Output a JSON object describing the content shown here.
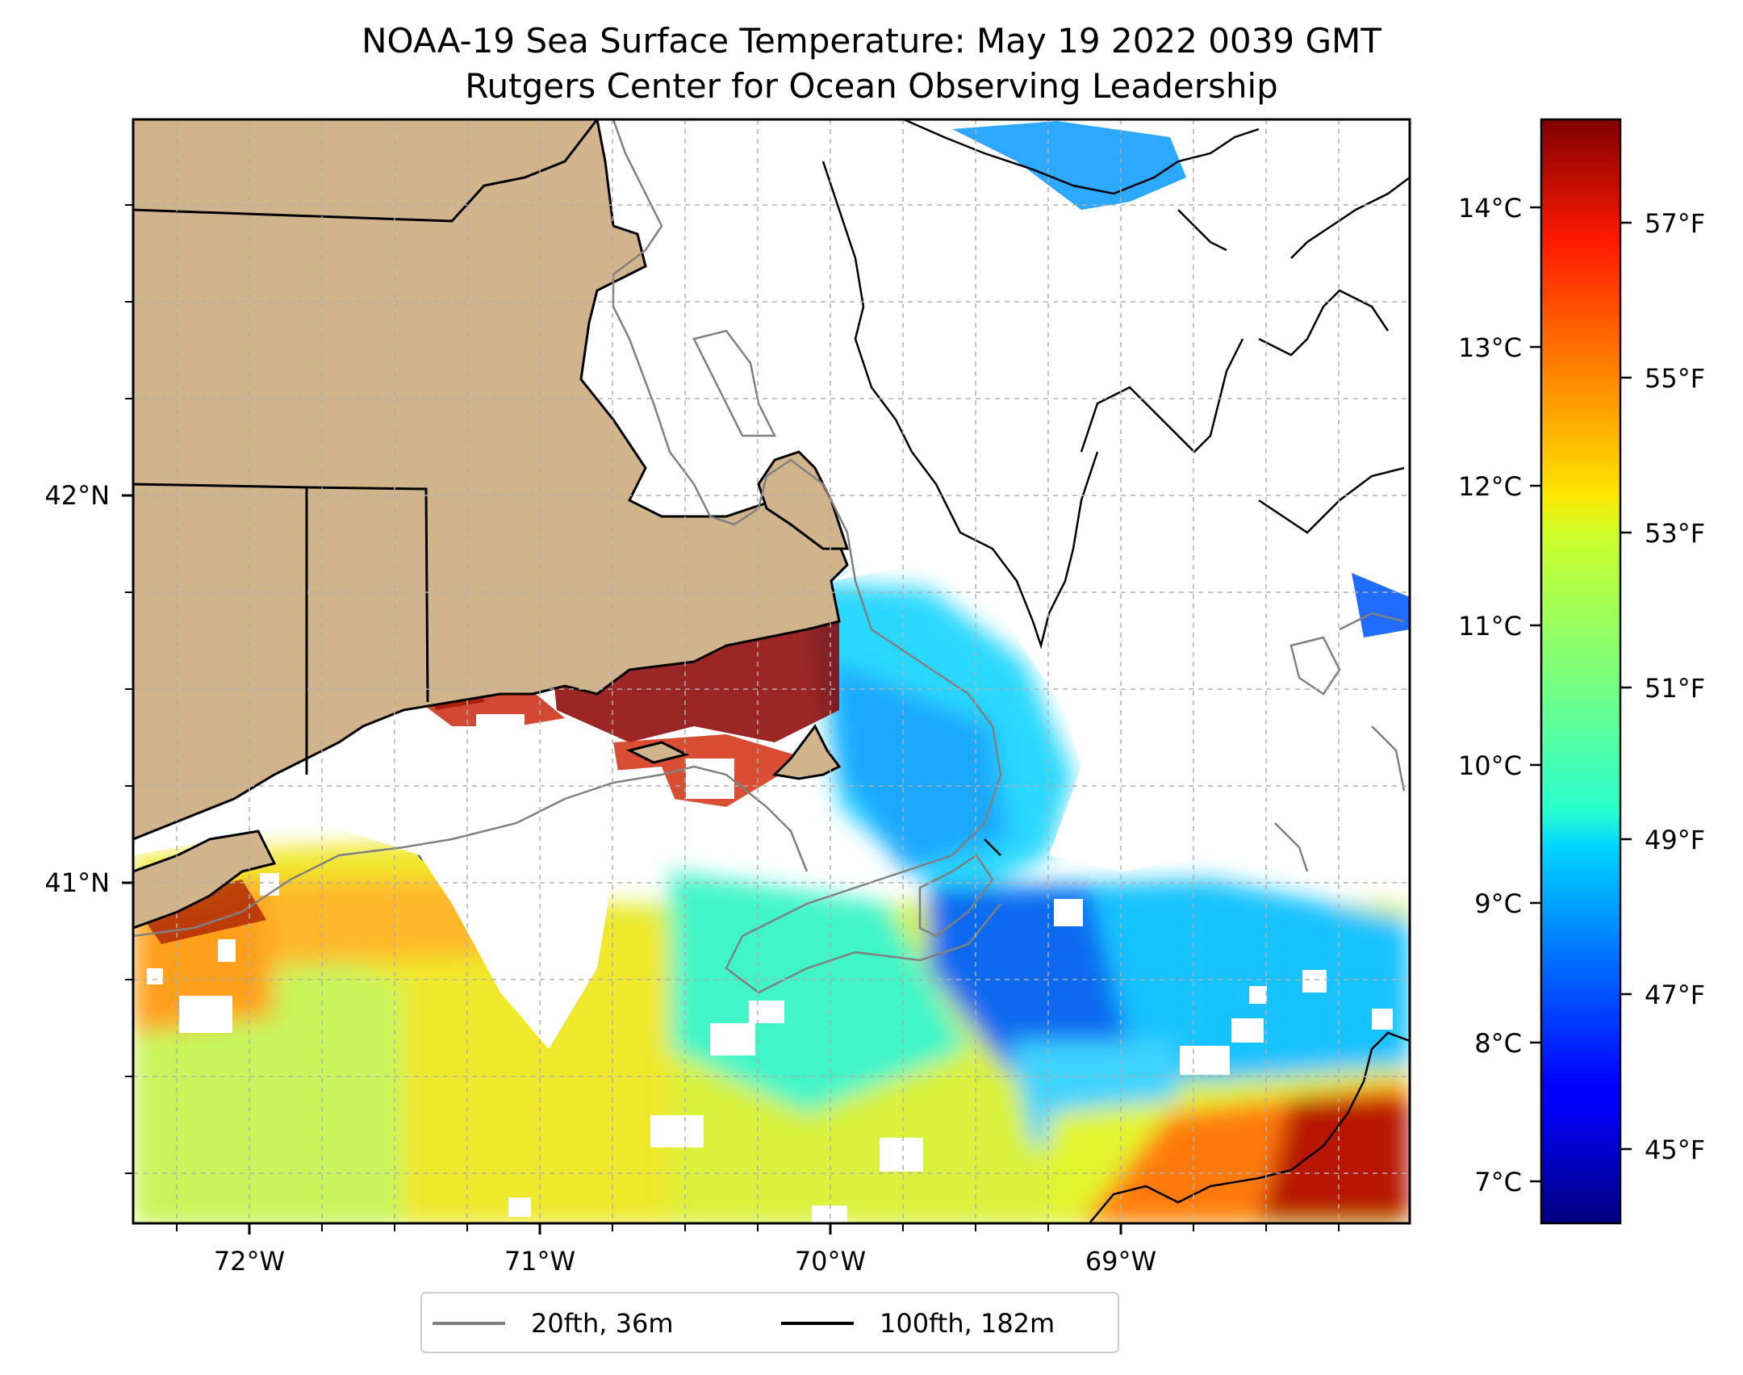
{
  "title": {
    "line1": "NOAA-19 Sea Surface Temperature: May 19 2022 0039 GMT",
    "line2": "Rutgers Center for Ocean Observing Leadership"
  },
  "map": {
    "lon_ticks": [
      "72°W",
      "71°W",
      "70°W",
      "69°W"
    ],
    "lat_ticks": [
      "42°N",
      "41°N"
    ],
    "land_color": "#d2b48c",
    "grid": true
  },
  "legend": {
    "items": [
      {
        "label": "20fth, 36m",
        "color": "#808080"
      },
      {
        "label": "100fth, 182m",
        "color": "#000000"
      }
    ]
  },
  "colorbar": {
    "colormap": "jet",
    "celsius_ticks": [
      "14°C",
      "13°C",
      "12°C",
      "11°C",
      "10°C",
      "9°C",
      "8°C",
      "7°C"
    ],
    "fahrenheit_ticks": [
      "57°F",
      "55°F",
      "53°F",
      "51°F",
      "49°F",
      "47°F",
      "45°F"
    ]
  }
}
